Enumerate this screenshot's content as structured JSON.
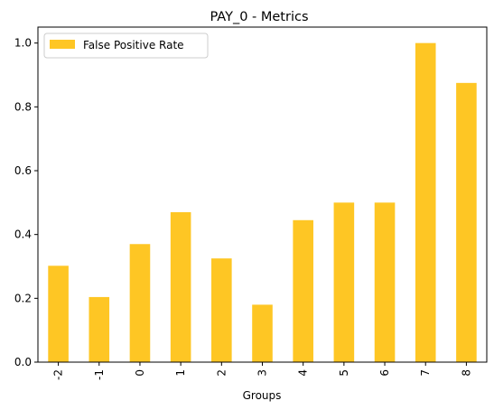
{
  "chart_data": {
    "type": "bar",
    "title": "PAY_0 - Metrics",
    "xlabel": "Groups",
    "ylabel": "",
    "categories": [
      "-2",
      "-1",
      "0",
      "1",
      "2",
      "3",
      "4",
      "5",
      "6",
      "7",
      "8"
    ],
    "series": [
      {
        "name": "False Positive Rate",
        "values": [
          0.302,
          0.204,
          0.37,
          0.47,
          0.325,
          0.18,
          0.445,
          0.5,
          0.5,
          1.0,
          0.875
        ],
        "color": "#fec624"
      }
    ],
    "ylim": [
      0,
      1.05
    ],
    "yticks": [
      "0.0",
      "0.2",
      "0.4",
      "0.6",
      "0.8",
      "1.0"
    ],
    "grid": false,
    "legend_position": "top-left"
  }
}
